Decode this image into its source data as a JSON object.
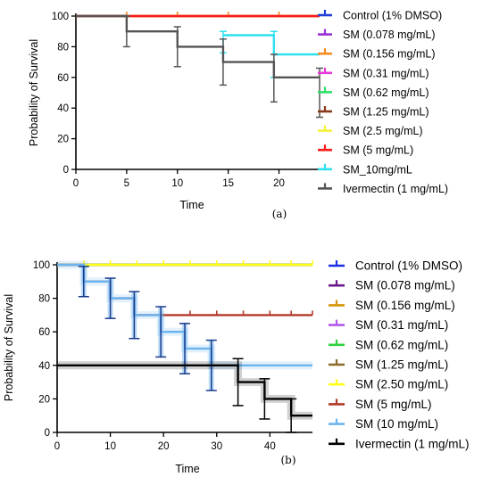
{
  "chart_data": [
    {
      "type": "line",
      "panel_label": "(a)",
      "xlabel": "Time",
      "ylabel": "Probability of Survival",
      "xlim": [
        0,
        24
      ],
      "ylim": [
        0,
        100
      ],
      "xticks": [
        0,
        5,
        10,
        15,
        20
      ],
      "yticks": [
        0,
        20,
        40,
        60,
        80,
        100
      ],
      "legend_position": "right",
      "series": [
        {
          "name": "Control (1% DMSO)",
          "color": "#1f3fd6",
          "x": [
            0,
            24
          ],
          "y": [
            100,
            100
          ],
          "censor_x": []
        },
        {
          "name": "SM (0.078 mg/mL)",
          "color": "#9b30d9",
          "x": [
            0,
            24
          ],
          "y": [
            100,
            100
          ],
          "censor_x": []
        },
        {
          "name": "SM (0.156 mg/mL)",
          "color": "#f28a20",
          "x": [
            0,
            24
          ],
          "y": [
            100,
            100
          ],
          "censor_x": [
            5,
            10,
            15,
            20
          ]
        },
        {
          "name": "SM (0.31 mg/mL)",
          "color": "#e83ad8",
          "x": [
            0,
            24
          ],
          "y": [
            100,
            100
          ],
          "censor_x": []
        },
        {
          "name": "SM (0.62 mg/mL)",
          "color": "#2ee06a",
          "x": [
            0,
            24
          ],
          "y": [
            100,
            100
          ],
          "censor_x": []
        },
        {
          "name": "SM (1.25 mg/mL)",
          "color": "#8a3a1a",
          "x": [
            0,
            24
          ],
          "y": [
            100,
            100
          ],
          "censor_x": []
        },
        {
          "name": "SM (2.5 mg/mL)",
          "color": "#f5f03a",
          "x": [
            0,
            24
          ],
          "y": [
            100,
            100
          ],
          "censor_x": []
        },
        {
          "name": "SM (5 mg/mL)",
          "color": "#ff1a1a",
          "x": [
            0,
            24
          ],
          "y": [
            100,
            100
          ],
          "censor_x": []
        },
        {
          "name": "SM_10mg/mL",
          "color": "#2fe0f0",
          "x": [
            14.5,
            19.5,
            24
          ],
          "y": [
            87.5,
            75,
            75
          ],
          "censor_x": [],
          "error_bars": [
            {
              "x": 14.5,
              "y": 87.5,
              "low": 76,
              "high": 90
            },
            {
              "x": 19.5,
              "y": 75,
              "low": 60,
              "high": 90
            }
          ]
        },
        {
          "name": "Ivermectin (1 mg/mL)",
          "color": "#555555",
          "x": [
            0,
            5,
            10,
            14.5,
            19.5,
            24
          ],
          "y": [
            100,
            90,
            80,
            70,
            60,
            60
          ],
          "censor_x": [],
          "error_bars": [
            {
              "x": 5,
              "y": 90,
              "low": 80,
              "high": 100
            },
            {
              "x": 10,
              "y": 80,
              "low": 67,
              "high": 93
            },
            {
              "x": 14.5,
              "y": 70,
              "low": 55,
              "high": 85
            },
            {
              "x": 19.5,
              "y": 60,
              "low": 44,
              "high": 75
            },
            {
              "x": 24,
              "y": 60,
              "low": 34,
              "high": 66
            }
          ]
        }
      ]
    },
    {
      "type": "line",
      "panel_label": "(b)",
      "xlabel": "Time",
      "ylabel": "Probability of Survival",
      "xlim": [
        0,
        48
      ],
      "ylim": [
        0,
        100
      ],
      "xticks": [
        0,
        10,
        20,
        30,
        40
      ],
      "yticks": [
        0,
        20,
        40,
        60,
        80,
        100
      ],
      "legend_position": "right",
      "series": [
        {
          "name": "Control (1% DMSO)",
          "color": "#1a2ee8",
          "x": [
            0,
            48
          ],
          "y": [
            100,
            100
          ],
          "censor_x": []
        },
        {
          "name": "SM (0.078 mg/mL)",
          "color": "#6a1a8a",
          "x": [
            0,
            48
          ],
          "y": [
            100,
            100
          ],
          "censor_x": []
        },
        {
          "name": "SM (0.156 mg/mL)",
          "color": "#d4960a",
          "x": [
            0,
            48
          ],
          "y": [
            100,
            100
          ],
          "censor_x": []
        },
        {
          "name": "SM (0.31 mg/mL)",
          "color": "#b05ae8",
          "x": [
            0,
            48
          ],
          "y": [
            100,
            100
          ],
          "censor_x": []
        },
        {
          "name": "SM (0.62 mg/mL)",
          "color": "#30d040",
          "x": [
            0,
            48
          ],
          "y": [
            100,
            100
          ],
          "censor_x": []
        },
        {
          "name": "SM (1.25 mg/mL)",
          "color": "#8a6a2a",
          "x": [
            0,
            48
          ],
          "y": [
            100,
            100
          ],
          "censor_x": []
        },
        {
          "name": "SM (2.50 mg/mL)",
          "color": "#ffff1a",
          "x": [
            0,
            48
          ],
          "y": [
            100,
            100
          ],
          "censor_x": [
            5,
            10,
            15,
            20,
            25,
            30,
            35,
            40,
            44,
            48
          ]
        },
        {
          "name": "SM (5 mg/mL)",
          "color": "#b03a2a",
          "x": [
            0,
            5,
            10,
            14.5,
            19.5,
            48
          ],
          "y": [
            100,
            90,
            80,
            70,
            70,
            70
          ],
          "censor_x": [
            25,
            30,
            35,
            40,
            44,
            48
          ]
        },
        {
          "name": "SM (10 mg/mL)",
          "color": "#6ab4f0",
          "x": [
            0,
            5,
            10,
            14.5,
            19.5,
            24,
            29,
            48
          ],
          "y": [
            100,
            90,
            80,
            70,
            60,
            50,
            40,
            40
          ],
          "censor_x": [],
          "error_bars": [
            {
              "x": 5,
              "y": 90,
              "low": 81,
              "high": 99
            },
            {
              "x": 10,
              "y": 80,
              "low": 68,
              "high": 92
            },
            {
              "x": 14.5,
              "y": 70,
              "low": 56,
              "high": 84
            },
            {
              "x": 19.5,
              "y": 60,
              "low": 45,
              "high": 75
            },
            {
              "x": 24,
              "y": 50,
              "low": 35,
              "high": 65
            },
            {
              "x": 29,
              "y": 40,
              "low": 25,
              "high": 55
            }
          ]
        },
        {
          "name": "Ivermectin (1 mg/mL)",
          "color": "#000000",
          "x": [
            0,
            34,
            39,
            44,
            48
          ],
          "y": [
            40,
            30,
            20,
            10,
            10
          ],
          "censor_x": [],
          "error_bars": [
            {
              "x": 34,
              "y": 30,
              "low": 16,
              "high": 44
            },
            {
              "x": 39,
              "y": 20,
              "low": 8,
              "high": 32
            },
            {
              "x": 44,
              "y": 10,
              "low": 0,
              "high": 20
            }
          ]
        }
      ]
    }
  ]
}
